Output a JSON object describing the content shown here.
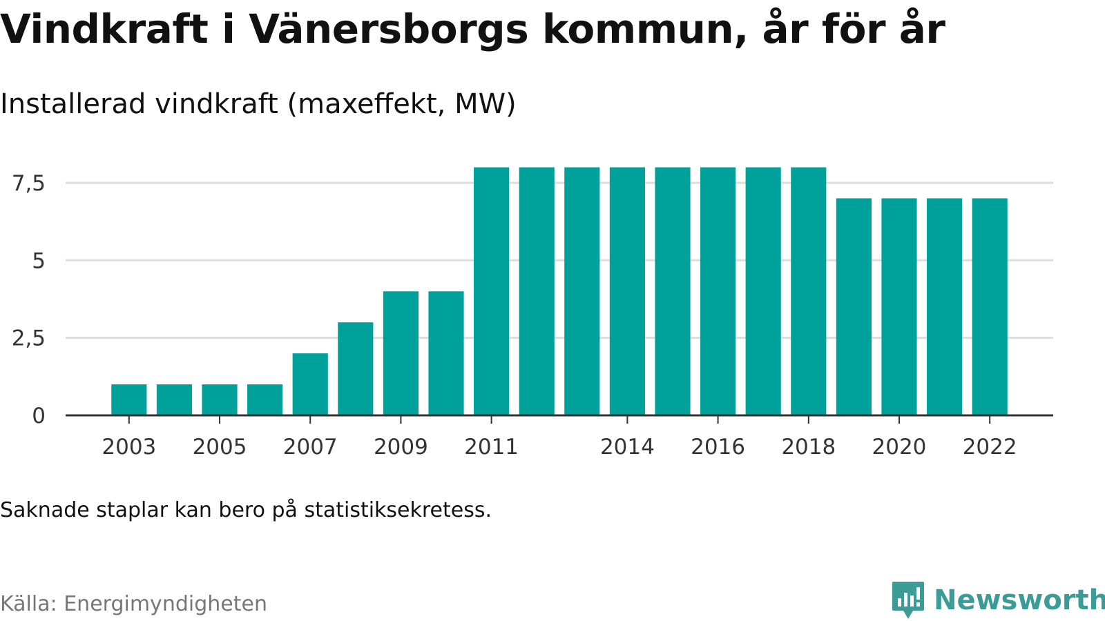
{
  "title": "Vindkraft i Vänersborgs kommun, år för år",
  "subtitle": "Installerad vindkraft (maxeffekt, MW)",
  "note": "Saknade staplar kan bero på statistiksekretess.",
  "source": "Källa: Energimyndigheten",
  "brand": {
    "name": "Newsworthy",
    "icon": "newsworthy-logo-icon",
    "color": "#3a9b97"
  },
  "colors": {
    "bar": "#00a19a",
    "grid": "#dddddd",
    "axis": "#333333"
  },
  "chart_data": {
    "type": "bar",
    "categories": [
      "2003",
      "2004",
      "2005",
      "2006",
      "2007",
      "2008",
      "2009",
      "2010",
      "2011",
      "2012",
      "2013",
      "2014",
      "2015",
      "2016",
      "2017",
      "2018",
      "2019",
      "2020",
      "2021",
      "2022"
    ],
    "values": [
      1,
      1,
      1,
      1,
      2,
      3,
      4,
      4,
      8,
      8,
      8,
      8,
      8,
      8,
      8,
      8,
      7,
      7,
      7,
      7
    ],
    "x_tick_labels": [
      "2003",
      "2005",
      "2007",
      "2009",
      "2011",
      "2014",
      "2016",
      "2018",
      "2020",
      "2022"
    ],
    "y_ticks": [
      0,
      2.5,
      5,
      7.5
    ],
    "y_tick_labels": [
      "0",
      "2,5",
      "5",
      "7,5"
    ],
    "ylim": [
      0,
      8.5
    ],
    "xlabel": "",
    "ylabel": "",
    "grid": true
  }
}
